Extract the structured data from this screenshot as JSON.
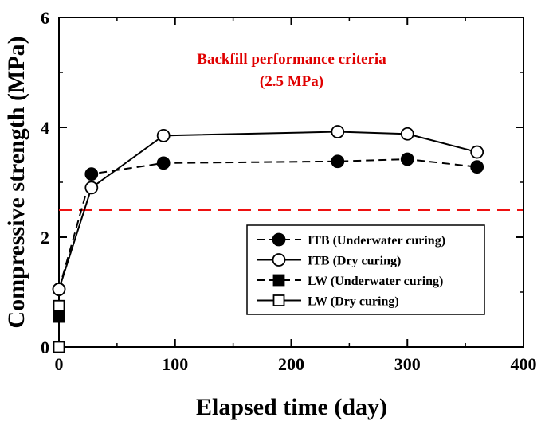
{
  "chart_data": {
    "type": "line",
    "xlabel": "Elapsed time (day)",
    "ylabel": "Compressive strength (MPa)",
    "xlim": [
      0,
      400
    ],
    "ylim": [
      0,
      6
    ],
    "xticks": [
      0,
      100,
      200,
      300,
      400
    ],
    "yticks": [
      0,
      2,
      4,
      6
    ],
    "grid": false,
    "legend_position": "bottom-right",
    "annotation": {
      "line1": "Backfill performance criteria",
      "line2": "(2.5 MPa)",
      "y": 2.5,
      "color": "#ee1111"
    },
    "series": [
      {
        "name": "ITB (Underwater curing)",
        "marker": "filled-circle",
        "line": "dashed",
        "x": [
          0,
          28,
          90,
          240,
          300,
          360
        ],
        "y": [
          1.05,
          3.15,
          3.35,
          3.38,
          3.42,
          3.28
        ]
      },
      {
        "name": "ITB (Dry curing)",
        "marker": "open-circle",
        "line": "solid",
        "x": [
          0,
          28,
          90,
          240,
          300,
          360
        ],
        "y": [
          1.05,
          2.9,
          3.85,
          3.92,
          3.88,
          3.55
        ]
      },
      {
        "name": "LW (Underwater curing)",
        "marker": "filled-square",
        "line": "dashed",
        "x": [
          0
        ],
        "y": [
          0.55
        ]
      },
      {
        "name": "LW (Dry curing)",
        "marker": "open-square",
        "line": "solid",
        "x": [
          0,
          0
        ],
        "y": [
          0.75,
          0.0
        ]
      }
    ]
  }
}
